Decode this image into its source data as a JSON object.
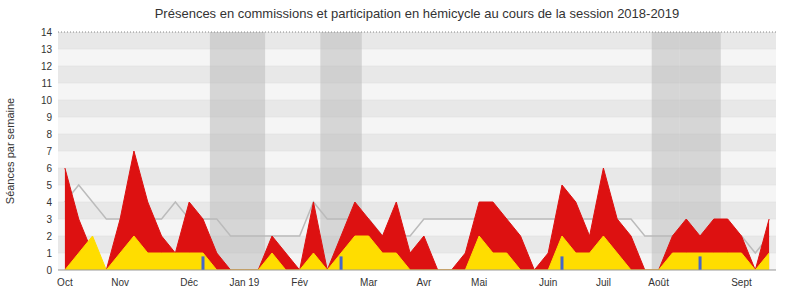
{
  "chart_data": {
    "type": "area",
    "title": "Présences en commissions et participation en hémicycle au cours de la session 2018-2019",
    "y_label": "Séances par semaine",
    "categories": [
      "Oct",
      null,
      null,
      null,
      "Nov",
      null,
      null,
      null,
      null,
      "Déc",
      null,
      null,
      null,
      "Jan 19",
      null,
      null,
      null,
      "Fév",
      null,
      null,
      null,
      null,
      "Mar",
      null,
      null,
      null,
      "Avr",
      null,
      null,
      null,
      "Mai",
      null,
      null,
      null,
      null,
      "Juin",
      null,
      null,
      null,
      "Juil",
      null,
      null,
      null,
      "Août",
      null,
      null,
      null,
      null,
      null,
      "Sept",
      null,
      null
    ],
    "series": [
      {
        "type": "line",
        "color": "#bbbbbb",
        "values": [
          4,
          5,
          4,
          3,
          3,
          3,
          3,
          3,
          4,
          3,
          3,
          3,
          2,
          2,
          2,
          2,
          2,
          2,
          4,
          3,
          3,
          3,
          3,
          2,
          2,
          2,
          3,
          3,
          3,
          3,
          3,
          3,
          3,
          3,
          3,
          3,
          3,
          3,
          3,
          3,
          3,
          3,
          2,
          2,
          2,
          2,
          2,
          2,
          2,
          2,
          1,
          2
        ]
      },
      {
        "type": "area",
        "color": "#dd1111",
        "values": [
          6,
          3,
          1,
          0,
          3,
          7,
          4,
          2,
          1,
          4,
          3,
          1,
          0,
          0,
          0,
          2,
          1,
          0,
          4,
          0,
          2,
          4,
          3,
          2,
          4,
          1,
          2,
          0,
          0,
          1,
          4,
          4,
          3,
          2,
          0,
          1,
          5,
          4,
          2,
          6,
          3,
          2,
          0,
          0,
          2,
          3,
          2,
          3,
          3,
          2,
          0,
          3
        ]
      },
      {
        "type": "area",
        "color": "#ffdd00",
        "values": [
          0,
          1,
          2,
          0,
          1,
          2,
          1,
          1,
          1,
          1,
          1,
          0,
          0,
          0,
          0,
          1,
          0,
          0,
          1,
          0,
          1,
          2,
          2,
          1,
          1,
          0,
          0,
          0,
          0,
          0,
          2,
          1,
          1,
          0,
          0,
          0,
          2,
          1,
          1,
          2,
          1,
          0,
          0,
          0,
          1,
          1,
          1,
          1,
          1,
          1,
          0,
          1
        ]
      },
      {
        "type": "bar",
        "color": "#4466cc",
        "values": [
          null,
          null,
          null,
          null,
          null,
          null,
          null,
          null,
          null,
          null,
          0.8,
          null,
          null,
          null,
          null,
          null,
          null,
          null,
          null,
          null,
          0.8,
          null,
          null,
          null,
          null,
          null,
          null,
          null,
          null,
          null,
          null,
          null,
          null,
          null,
          null,
          null,
          0.8,
          null,
          null,
          null,
          null,
          null,
          null,
          null,
          null,
          null,
          0.8,
          null,
          null,
          null,
          null,
          null
        ]
      }
    ],
    "shade_regions": {
      "color": "#bbbbbb",
      "ranges": [
        [
          11,
          15
        ],
        [
          19,
          22
        ],
        [
          43,
          45
        ],
        [
          45,
          48
        ]
      ]
    },
    "ylim": [
      0,
      14
    ],
    "yticks": [
      0,
      1,
      2,
      3,
      4,
      5,
      6,
      7,
      8,
      9,
      10,
      11,
      12,
      13,
      14
    ],
    "grid": true
  }
}
